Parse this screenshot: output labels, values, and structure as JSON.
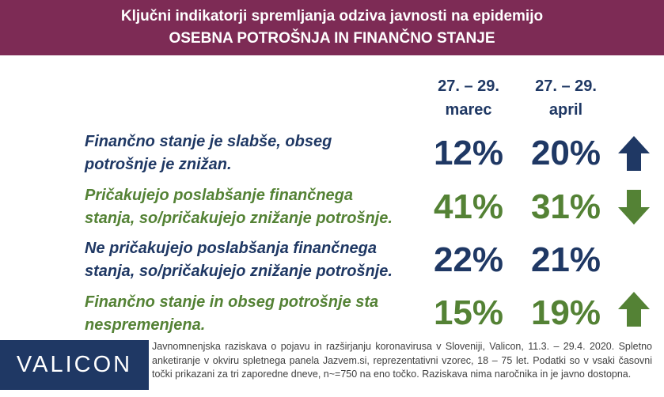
{
  "header": {
    "title": "Ključni indikatorji spremljanja odziva javnosti na epidemijo",
    "subtitle": "OSEBNA POTROŠNJA IN FINANČNO STANJE"
  },
  "columns": [
    {
      "line1": "27. – 29.",
      "line2": "marec"
    },
    {
      "line1": "27. – 29.",
      "line2": "april"
    }
  ],
  "rows": [
    {
      "line1": "Finančno stanje je slabše, obseg",
      "line2": "potrošnje je znižan.",
      "march": "12%",
      "april": "20%",
      "color": "#1f3864",
      "trend": "up"
    },
    {
      "line1": "Pričakujejo poslabšanje finančnega",
      "line2": "stanja, so/pričakujejo znižanje potrošnje.",
      "march": "41%",
      "april": "31%",
      "color": "#548235",
      "trend": "down"
    },
    {
      "line1": "Ne pričakujejo poslabšanja finančnega",
      "line2": "stanja, so/pričakujejo znižanje potrošnje.",
      "march": "22%",
      "april": "21%",
      "color": "#1f3864",
      "trend": "none"
    },
    {
      "line1": "Finančno stanje in obseg potrošnje sta",
      "line2": "nespremenjena.",
      "march": "15%",
      "april": "19%",
      "color": "#548235",
      "trend": "up"
    }
  ],
  "footer": {
    "logo": "VALICON",
    "note": "Javnomnenjska raziskava o pojavu in razširjanju koronavirusa v Sloveniji, Valicon, 11.3. – 29.4. 2020. Spletno anketiranje v okviru spletnega panela Jazvem.si, reprezentativni vzorec, 18 – 75 let. Podatki so v vsaki časovni točki prikazani za tri zaporedne dneve, n~=750 na eno točko. Raziskava nima naročnika in je javno dostopna."
  }
}
